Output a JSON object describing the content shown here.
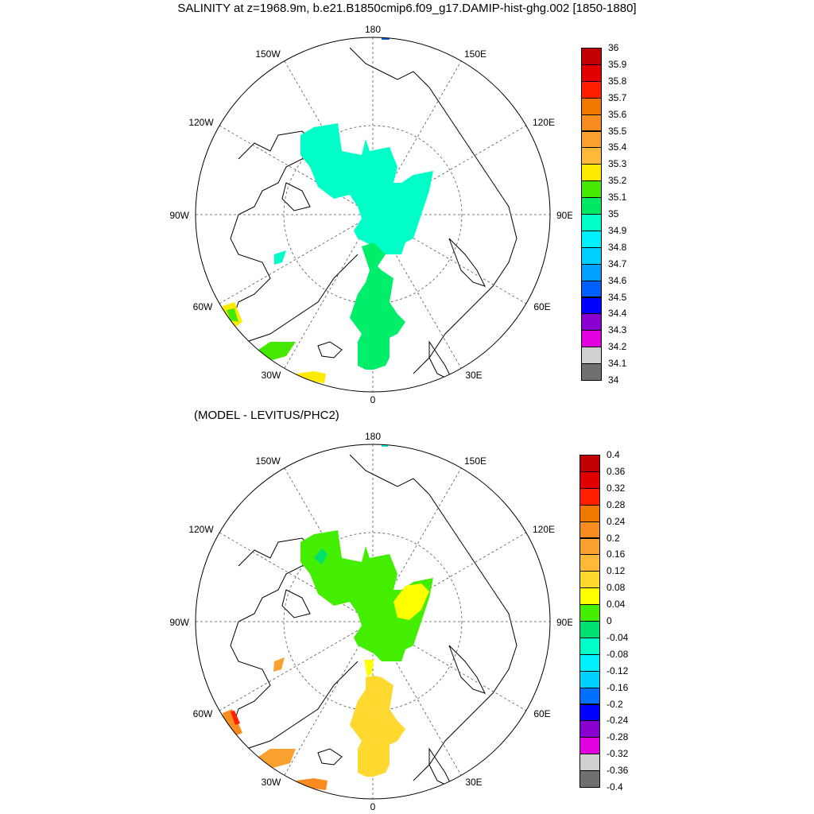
{
  "title": "SALINITY at z=1968.9m, b.e21.B1850cmip6.f09_g17.DAMIP-hist-ghg.002 [1850-1880]",
  "subtitle": "(MODEL - LEVITUS/PHC2)",
  "map_labels": {
    "top": "180",
    "bottom": "0",
    "left": "90W",
    "right": "90E",
    "nw_outer": "150W",
    "ne_outer": "150E",
    "nw_inner": "120W",
    "ne_inner": "120E",
    "sw_inner": "60W",
    "se_inner": "60E",
    "sw_outer": "30W",
    "se_outer": "30E"
  },
  "colorbar_top": {
    "labels": [
      "36",
      "35.9",
      "35.8",
      "35.7",
      "35.6",
      "35.5",
      "35.4",
      "35.3",
      "35.2",
      "35.1",
      "35",
      "34.9",
      "34.8",
      "34.7",
      "34.6",
      "34.5",
      "34.4",
      "34.3",
      "34.2",
      "34.1",
      "34"
    ],
    "colors": [
      "#c00000",
      "#e00000",
      "#ff2000",
      "#f07800",
      "#f88c20",
      "#f8a030",
      "#ffb838",
      "#ffea00",
      "#44e800",
      "#00e864",
      "#00ffc8",
      "#00f0ff",
      "#00d0ff",
      "#00a0ff",
      "#0060ff",
      "#0000ff",
      "#8800d0",
      "#e000e0",
      "#d0d0d0",
      "#707070"
    ]
  },
  "colorbar_bottom": {
    "labels": [
      "0.4",
      "0.36",
      "0.32",
      "0.28",
      "0.24",
      "0.2",
      "0.16",
      "0.12",
      "0.08",
      "0.04",
      "0",
      "-0.04",
      "-0.08",
      "-0.12",
      "-0.16",
      "-0.2",
      "-0.24",
      "-0.28",
      "-0.32",
      "-0.36",
      "-0.4"
    ],
    "colors": [
      "#c00000",
      "#e00000",
      "#ff2000",
      "#f07800",
      "#f88c20",
      "#f8a030",
      "#ffb838",
      "#ffd830",
      "#ffff00",
      "#44ee00",
      "#00e070",
      "#00ffc8",
      "#00f0ff",
      "#00d0ff",
      "#0070ff",
      "#0000ff",
      "#8800d0",
      "#e000e0",
      "#d0d0d0",
      "#707070"
    ]
  }
}
